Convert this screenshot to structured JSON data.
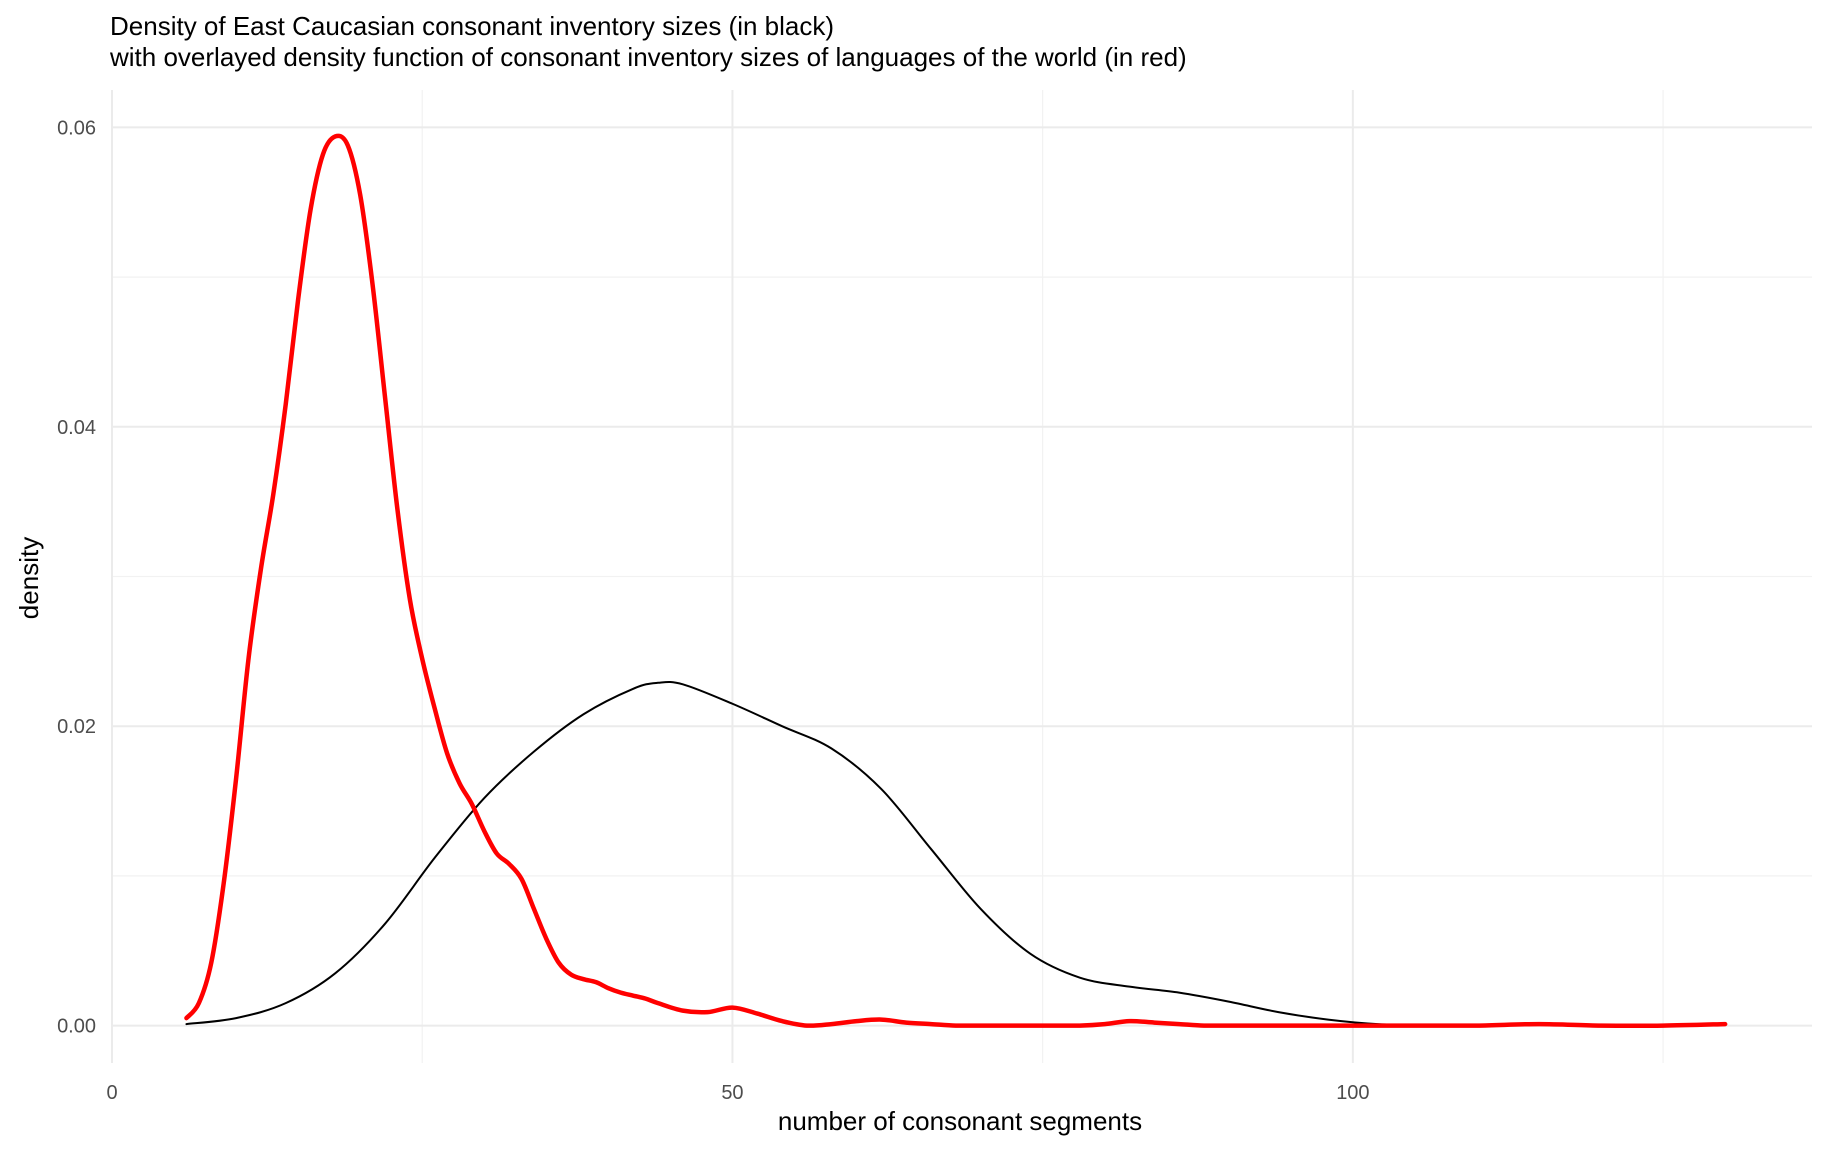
{
  "chart_data": {
    "type": "line",
    "title": "Density of East Caucasian consonant inventory sizes (in black)",
    "subtitle": "with overlayed density function of consonant inventory sizes of languages of the world (in red)",
    "xlabel": "number of consonant segments",
    "ylabel": "density",
    "xlim": [
      0,
      137
    ],
    "ylim": [
      -0.0025,
      0.0625
    ],
    "x_ticks": [
      0,
      50,
      100
    ],
    "x_tick_labels": [
      "0",
      "50",
      "100"
    ],
    "x_minor_ticks": [
      25,
      75,
      125
    ],
    "y_ticks": [
      0,
      0.02,
      0.04,
      0.06
    ],
    "y_tick_labels": [
      "0.00",
      "0.02",
      "0.04",
      "0.06"
    ],
    "y_minor_ticks": [
      0.01,
      0.03,
      0.05
    ],
    "grid": true,
    "series": [
      {
        "color": "#000000",
        "width": 2,
        "x": [
          6,
          10,
          14,
          18,
          22,
          26,
          30,
          34,
          38,
          42,
          44,
          46,
          50,
          54,
          58,
          62,
          66,
          70,
          74,
          78,
          82,
          86,
          90,
          94,
          98,
          102,
          106,
          110
        ],
        "y": [
          0.0001,
          0.0005,
          0.0015,
          0.0035,
          0.0068,
          0.0112,
          0.0152,
          0.0183,
          0.0208,
          0.0225,
          0.0229,
          0.0228,
          0.0215,
          0.02,
          0.0185,
          0.0158,
          0.0118,
          0.0078,
          0.0048,
          0.0032,
          0.0026,
          0.0022,
          0.0016,
          0.0009,
          0.0004,
          0.0001,
          3e-05,
          0.0
        ]
      },
      {
        "color": "#ff0000",
        "width": 4.5,
        "x": [
          6,
          7,
          8,
          9,
          10,
          11,
          12,
          13,
          14,
          15,
          16,
          17,
          18,
          19,
          20,
          21,
          22,
          23,
          24,
          25,
          26,
          27,
          28,
          29,
          30,
          31,
          32,
          33,
          34,
          35,
          36,
          37,
          38,
          39,
          40,
          41,
          42,
          43,
          44,
          46,
          48,
          50,
          52,
          54,
          56,
          58,
          60,
          62,
          64,
          66,
          68,
          70,
          72,
          74,
          76,
          78,
          80,
          82,
          84,
          86,
          88,
          90,
          92,
          94,
          96,
          98,
          100,
          105,
          110,
          115,
          120,
          125,
          130
        ],
        "y": [
          0.0005,
          0.0015,
          0.0042,
          0.0095,
          0.0165,
          0.0245,
          0.0305,
          0.0355,
          0.0415,
          0.0485,
          0.0545,
          0.0582,
          0.0594,
          0.0588,
          0.0555,
          0.0495,
          0.042,
          0.0345,
          0.0285,
          0.0245,
          0.0212,
          0.0182,
          0.0162,
          0.0148,
          0.013,
          0.0115,
          0.0108,
          0.0098,
          0.0078,
          0.0058,
          0.0042,
          0.0034,
          0.0031,
          0.0029,
          0.0025,
          0.0022,
          0.002,
          0.0018,
          0.0015,
          0.001,
          0.0009,
          0.0012,
          0.0008,
          0.0003,
          0.0,
          0.0001,
          0.0003,
          0.0004,
          0.0002,
          0.0001,
          0.0,
          0.0,
          0.0,
          0.0,
          0.0,
          0.0,
          0.0001,
          0.0003,
          0.0002,
          0.0001,
          0.0,
          0.0,
          0.0,
          0.0,
          0.0,
          0.0,
          0.0,
          0.0,
          0.0,
          0.0001,
          0.0,
          0.0,
          0.0001
        ]
      }
    ]
  }
}
